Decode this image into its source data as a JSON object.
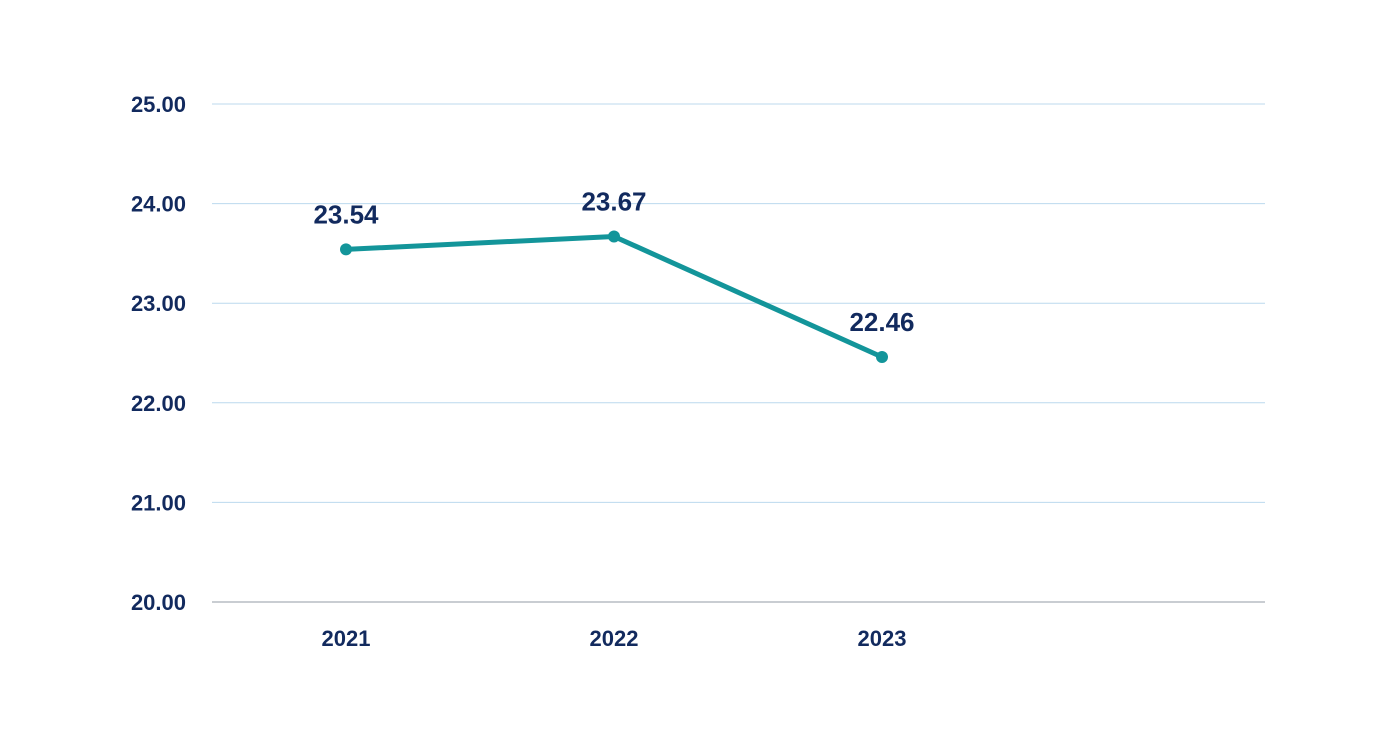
{
  "chart_data": {
    "type": "line",
    "title": "",
    "xlabel": "",
    "ylabel": "",
    "categories": [
      "2021",
      "2022",
      "2023"
    ],
    "series": [
      {
        "values": [
          23.54,
          23.67,
          22.46
        ]
      }
    ],
    "data_labels": [
      "23.54",
      "23.67",
      "22.46"
    ],
    "y_ticks": [
      "20.00",
      "21.00",
      "22.00",
      "23.00",
      "24.00",
      "25.00"
    ],
    "ylim": [
      20,
      25
    ],
    "grid": true,
    "legend": "none",
    "colors": {
      "line": "#13959a",
      "text": "#122a5e",
      "grid": "#bcd9ee",
      "axis": "#c9cdd2"
    }
  }
}
